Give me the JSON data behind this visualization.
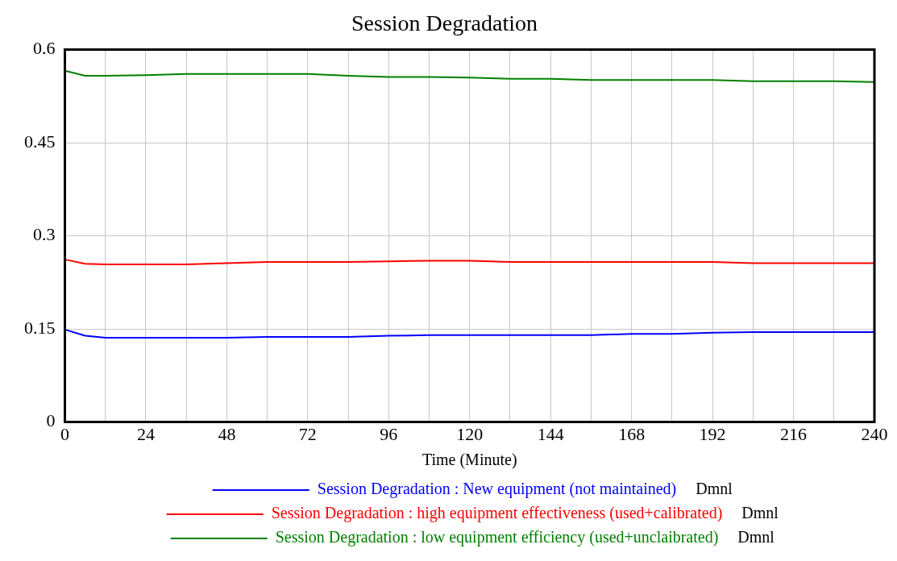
{
  "chart_data": {
    "type": "line",
    "title": "Session Degradation",
    "xlabel": "Time (Minute)",
    "x": [
      0,
      6,
      12,
      24,
      36,
      48,
      60,
      72,
      84,
      96,
      108,
      120,
      132,
      144,
      156,
      168,
      180,
      192,
      204,
      216,
      228,
      240
    ],
    "series": [
      {
        "name": "Session Degradation : New equipment (not maintained)",
        "color": "#0000ff",
        "values": [
          0.149,
          0.139,
          0.136,
          0.136,
          0.136,
          0.136,
          0.137,
          0.137,
          0.137,
          0.139,
          0.14,
          0.14,
          0.14,
          0.14,
          0.14,
          0.142,
          0.142,
          0.144,
          0.145,
          0.145,
          0.145,
          0.145
        ]
      },
      {
        "name": "Session Degradation : high equipment effectiveness (used+calibrated)",
        "color": "#ff0000",
        "values": [
          0.262,
          0.255,
          0.254,
          0.254,
          0.254,
          0.256,
          0.258,
          0.258,
          0.258,
          0.259,
          0.26,
          0.26,
          0.258,
          0.258,
          0.258,
          0.258,
          0.258,
          0.258,
          0.256,
          0.256,
          0.256,
          0.256
        ]
      },
      {
        "name": "Session Degradation : low equipment efficiency (used+unclaibrated)",
        "color": "#008000",
        "values": [
          0.566,
          0.558,
          0.558,
          0.559,
          0.561,
          0.561,
          0.561,
          0.561,
          0.558,
          0.556,
          0.556,
          0.555,
          0.553,
          0.553,
          0.551,
          0.551,
          0.551,
          0.551,
          0.549,
          0.549,
          0.549,
          0.548
        ]
      }
    ],
    "xlim": [
      0,
      240
    ],
    "xticks": [
      0,
      {
        "value": 12,
        "label": null
      },
      24,
      {
        "value": 36,
        "label": null
      },
      48,
      {
        "value": 60,
        "label": null
      },
      72,
      {
        "value": 84,
        "label": null
      },
      96,
      {
        "value": 108,
        "label": null
      },
      120,
      {
        "value": 132,
        "label": null
      },
      144,
      {
        "value": 156,
        "label": null
      },
      168,
      {
        "value": 180,
        "label": null
      },
      192,
      {
        "value": 204,
        "label": null
      },
      216,
      {
        "value": 228,
        "label": null
      },
      240
    ],
    "ylim": [
      0,
      0.6
    ],
    "yticks": [
      0,
      0.15,
      0.3,
      0.45,
      0.6
    ],
    "grid": true,
    "legend": "bottom",
    "annotations": [
      "Dmnl",
      "Dmnl",
      "Dmnl"
    ]
  }
}
